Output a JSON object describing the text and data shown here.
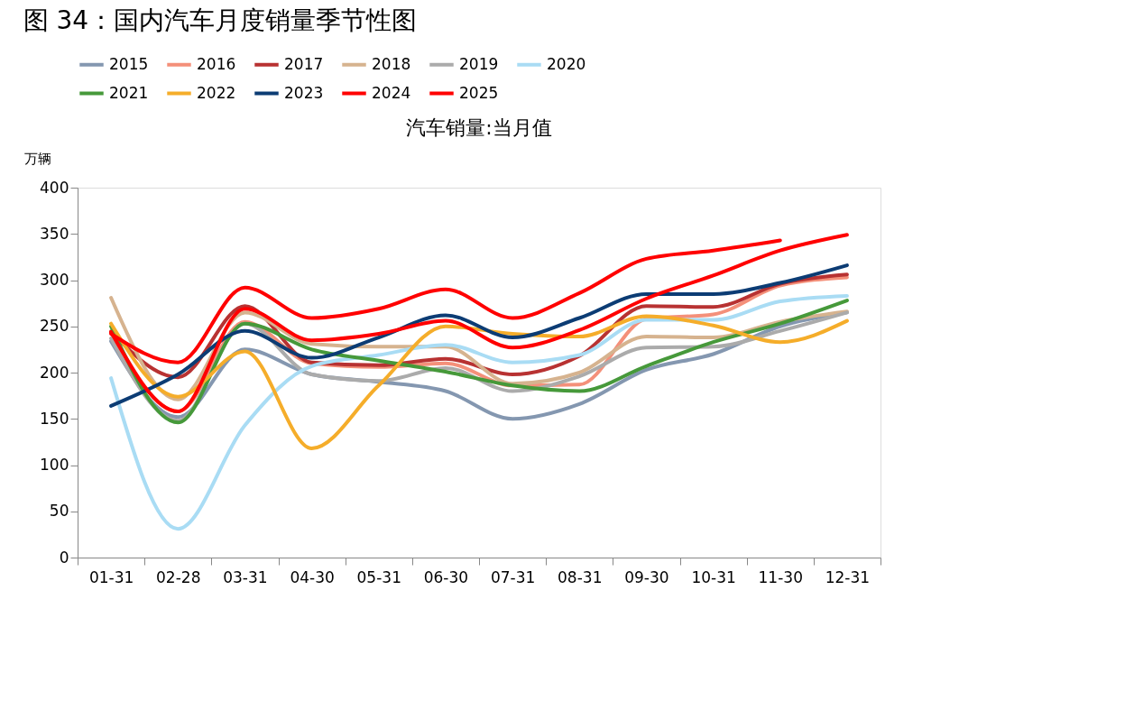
{
  "chart_data": {
    "type": "line",
    "title": "图 34：国内汽车月度销量季节性图",
    "subtitle": "汽车销量:当月值",
    "ylabel": "万辆",
    "categories": [
      "01-31",
      "02-28",
      "03-31",
      "04-30",
      "05-31",
      "06-30",
      "07-31",
      "08-31",
      "09-30",
      "10-31",
      "11-30",
      "12-31"
    ],
    "ylim": [
      0,
      400
    ],
    "yticks": [
      0,
      50,
      100,
      150,
      200,
      250,
      300,
      350,
      400
    ],
    "grid": false,
    "legend": "top",
    "marker": "none",
    "line_style": "solid",
    "series": [
      {
        "name": "2015",
        "color": "#8497b0",
        "values": [
          234,
          152,
          225,
          198,
          190,
          180,
          150,
          166,
          203,
          220,
          250,
          265
        ]
      },
      {
        "name": "2016",
        "color": "#f4907a",
        "values": [
          245,
          158,
          255,
          210,
          206,
          210,
          186,
          187,
          258,
          263,
          294,
          303
        ]
      },
      {
        "name": "2017",
        "color": "#b83232",
        "values": [
          244,
          195,
          272,
          211,
          208,
          215,
          198,
          218,
          272,
          271,
          296,
          306
        ]
      },
      {
        "name": "2018",
        "color": "#d6b38f",
        "values": [
          281,
          171,
          265,
          231,
          228,
          228,
          188,
          200,
          239,
          238,
          255,
          266
        ]
      },
      {
        "name": "2019",
        "color": "#ababab",
        "values": [
          237,
          148,
          253,
          198,
          191,
          205,
          180,
          196,
          227,
          228,
          245,
          265
        ]
      },
      {
        "name": "2020",
        "color": "#a9dcf4",
        "values": [
          194,
          31,
          143,
          207,
          219,
          230,
          211,
          219,
          257,
          257,
          277,
          283
        ]
      },
      {
        "name": "2021",
        "color": "#46993a",
        "values": [
          250,
          146,
          253,
          225,
          213,
          201,
          186,
          180,
          207,
          233,
          253,
          278
        ]
      },
      {
        "name": "2022",
        "color": "#f5ad2a",
        "values": [
          253,
          174,
          223,
          118,
          186,
          250,
          242,
          239,
          261,
          251,
          233,
          256
        ]
      },
      {
        "name": "2023",
        "color": "#0c3c74",
        "values": [
          164,
          198,
          245,
          216,
          238,
          262,
          238,
          259,
          285,
          285,
          297,
          316
        ]
      },
      {
        "name": "2024",
        "color": "#ff0000",
        "values": [
          244,
          158,
          269,
          235,
          242,
          256,
          227,
          246,
          280,
          305,
          332,
          349
        ]
      },
      {
        "name": "2025",
        "color": "#ff0000",
        "values": [
          242,
          211,
          292,
          259,
          269,
          290,
          259,
          286,
          323,
          332,
          343,
          null
        ]
      }
    ]
  }
}
